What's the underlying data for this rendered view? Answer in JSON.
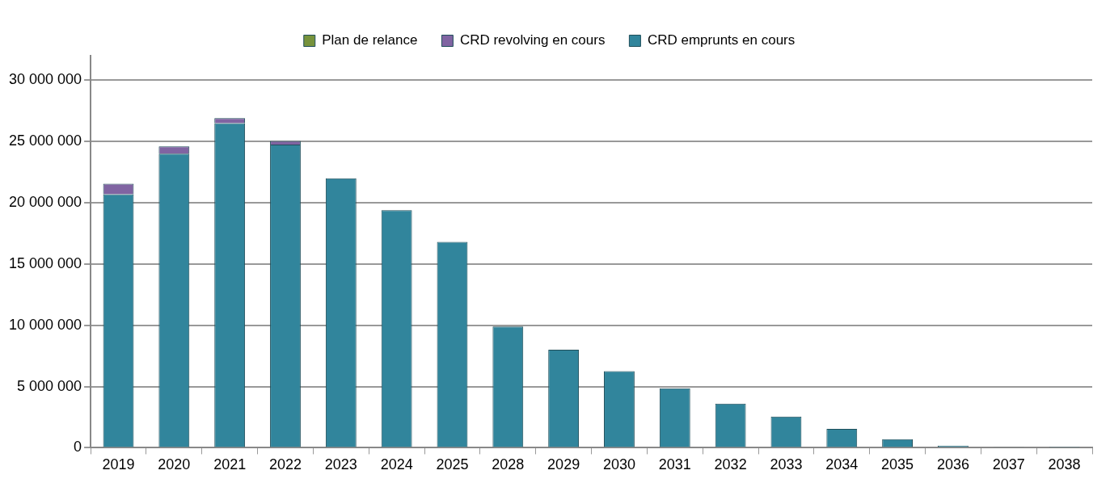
{
  "chart_data": {
    "type": "bar",
    "stacked": true,
    "categories": [
      "2019",
      "2020",
      "2021",
      "2022",
      "2023",
      "2024",
      "2025",
      "2028",
      "2029",
      "2030",
      "2031",
      "2032",
      "2033",
      "2034",
      "2035",
      "2036",
      "2037",
      "2038"
    ],
    "series": [
      {
        "name": "CRD emprunts en cours",
        "color": "#31859c",
        "values": [
          20700000,
          24000000,
          26500000,
          24750000,
          22000000,
          19400000,
          16800000,
          9900000,
          8000000,
          6250000,
          4850000,
          3600000,
          2550000,
          1550000,
          700000,
          180000,
          50000,
          20000
        ]
      },
      {
        "name": "CRD revolving en cours",
        "color": "#8064a2",
        "values": [
          850000,
          600000,
          400000,
          300000,
          0,
          0,
          0,
          0,
          0,
          0,
          0,
          0,
          0,
          0,
          0,
          0,
          0,
          0
        ]
      },
      {
        "name": "Plan de relance",
        "color": "#77933c",
        "values": [
          0,
          0,
          0,
          0,
          0,
          0,
          0,
          0,
          0,
          0,
          0,
          0,
          0,
          0,
          0,
          0,
          0,
          0
        ]
      }
    ],
    "ylim": [
      0,
      32000000
    ],
    "yticks": [
      {
        "value": 0,
        "label": "0"
      },
      {
        "value": 5000000,
        "label": "5 000 000"
      },
      {
        "value": 10000000,
        "label": "10 000 000"
      },
      {
        "value": 15000000,
        "label": "15 000 000"
      },
      {
        "value": 20000000,
        "label": "20 000 000"
      },
      {
        "value": 25000000,
        "label": "25 000 000"
      },
      {
        "value": 30000000,
        "label": "30 000 000"
      }
    ],
    "grid": "y",
    "legend": "top"
  }
}
